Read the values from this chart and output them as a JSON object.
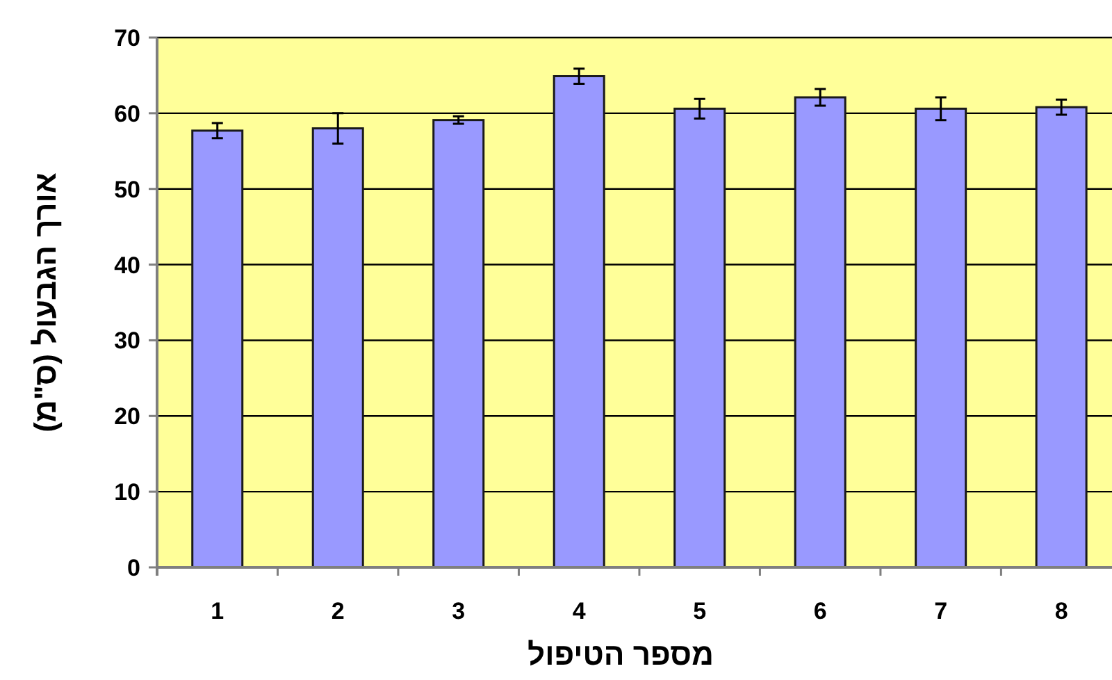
{
  "chart_data": {
    "type": "bar",
    "xlabel": "מספר הטיפול",
    "ylabel": "אורך הגבעול (ס\"מ)",
    "categories": [
      "1",
      "2",
      "3",
      "4",
      "5",
      "6",
      "7",
      "8"
    ],
    "values": [
      57.7,
      58.0,
      59.1,
      64.9,
      60.6,
      62.1,
      60.6,
      60.8
    ],
    "errors": [
      1.0,
      2.0,
      0.5,
      1.0,
      1.3,
      1.1,
      1.5,
      1.0
    ],
    "color": "#9999ff",
    "ylim": [
      0,
      70
    ],
    "yticks": [
      0,
      10,
      20,
      30,
      40,
      50,
      60,
      70
    ],
    "grid": "y"
  }
}
